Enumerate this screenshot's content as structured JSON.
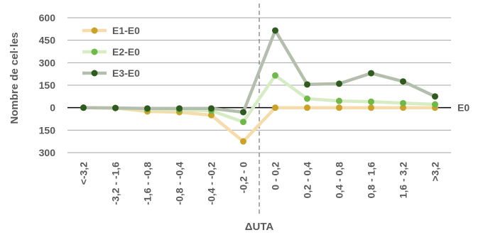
{
  "chart_data": {
    "type": "line",
    "title": "",
    "xlabel": "ΔUTA",
    "ylabel": "Nombre de cel·les",
    "zero_line_label": "E0",
    "categories": [
      "<-3,2",
      "-3,2 - -1,6",
      "-1,6 - -0,8",
      "-0,8 - -0,4",
      "-0,4 - -0,2",
      "-0,2 - 0",
      "0 - 0,2",
      "0,2 - 0,4",
      "0,4 - 0,8",
      "0,8 - 1,6",
      "1,6 - 3,2",
      ">3,2"
    ],
    "yticks": [
      {
        "value": 600,
        "label": "600"
      },
      {
        "value": 450,
        "label": "450"
      },
      {
        "value": 300,
        "label": "300"
      },
      {
        "value": 150,
        "label": "150"
      },
      {
        "value": 0,
        "label": "0"
      },
      {
        "value": -150,
        "label": "150"
      },
      {
        "value": -300,
        "label": "300"
      }
    ],
    "ylim": [
      -300,
      600
    ],
    "grid": true,
    "legend_position": "top-left",
    "divider_after_index": 5,
    "series": [
      {
        "name": "E1-E0",
        "line_color": "#f5dcaa",
        "marker_color": "#c9a227",
        "values": [
          0,
          -2,
          -25,
          -30,
          -50,
          -225,
          0,
          0,
          0,
          0,
          0,
          0
        ]
      },
      {
        "name": "E2-E0",
        "line_color": "#d6ecc4",
        "marker_color": "#70b84a",
        "values": [
          0,
          -2,
          -10,
          -15,
          -20,
          -95,
          215,
          60,
          45,
          40,
          30,
          22
        ]
      },
      {
        "name": "E3-E0",
        "line_color": "#b3bfac",
        "marker_color": "#2f5b1f",
        "values": [
          0,
          -2,
          -5,
          -5,
          -5,
          -30,
          515,
          155,
          160,
          230,
          175,
          75
        ]
      }
    ]
  }
}
